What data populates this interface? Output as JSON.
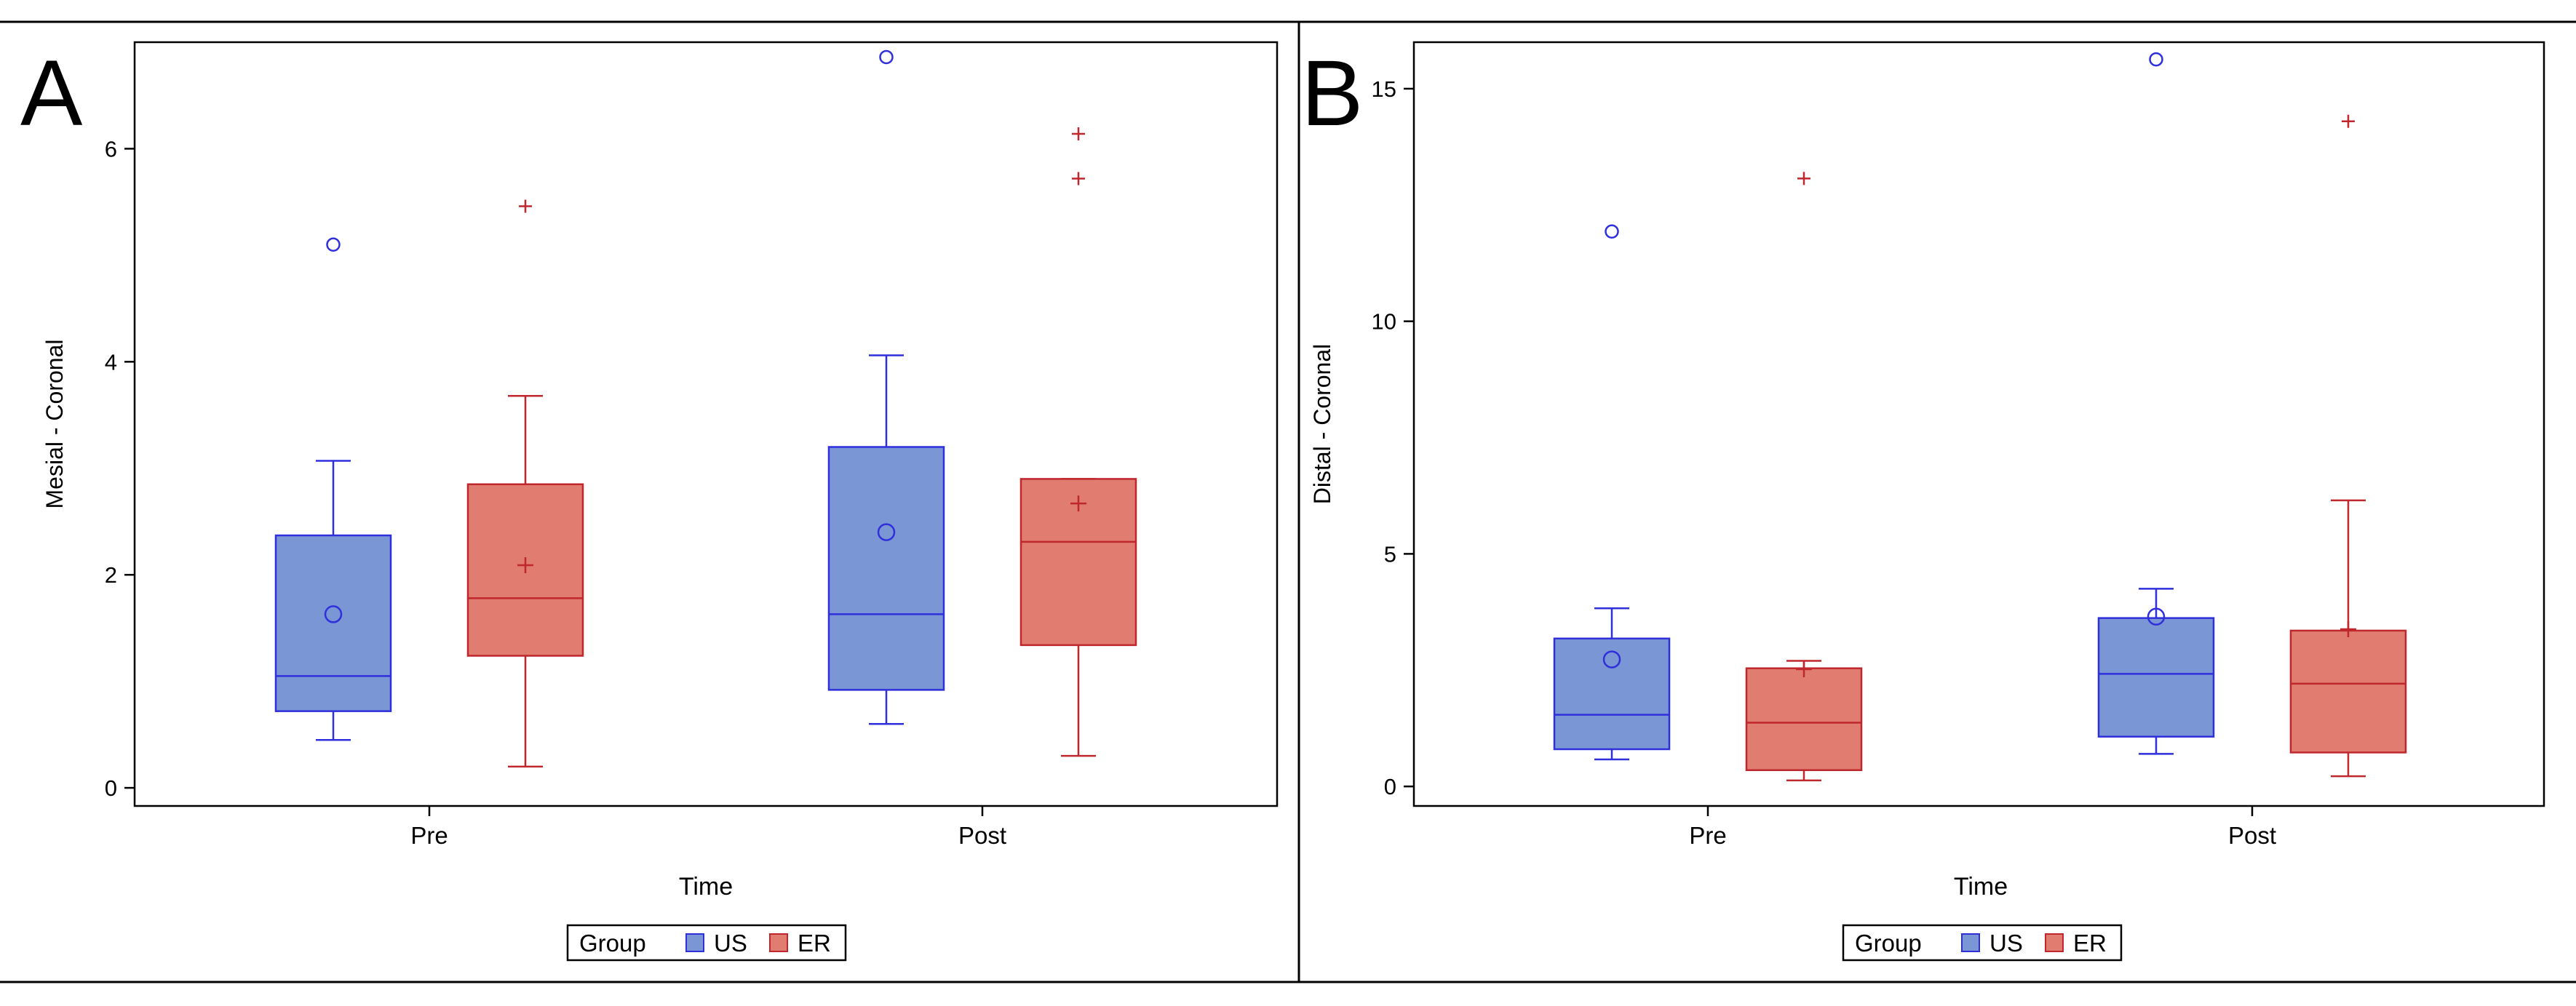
{
  "colors": {
    "us_fill": "#7b96d4",
    "us_stroke": "#2f2fdc",
    "er_fill": "#e07d70",
    "er_stroke": "#c0272d",
    "axis": "#000000"
  },
  "chart_data": [
    {
      "type": "box",
      "panel_label": "A",
      "xlabel": "Time",
      "ylabel": "Mesial - Coronal",
      "categories": [
        "Pre",
        "Post"
      ],
      "yticks": [
        0,
        2,
        4,
        6
      ],
      "ylim": [
        -0.17,
        7.0
      ],
      "legend": {
        "title": "Group",
        "items": [
          "US",
          "ER"
        ],
        "position": "bottom-center"
      },
      "series": [
        {
          "name": "US",
          "boxes": [
            {
              "category": "Pre",
              "whisker_low": 0.45,
              "q1": 0.72,
              "median": 1.05,
              "q3": 2.37,
              "whisker_high": 3.07,
              "mean": 1.63,
              "outliers": [
                5.1
              ]
            },
            {
              "category": "Post",
              "whisker_low": 0.6,
              "q1": 0.92,
              "median": 1.63,
              "q3": 3.2,
              "whisker_high": 4.06,
              "mean": 2.4,
              "outliers": [
                6.86
              ]
            }
          ]
        },
        {
          "name": "ER",
          "boxes": [
            {
              "category": "Pre",
              "whisker_low": 0.2,
              "q1": 1.24,
              "median": 1.78,
              "q3": 2.85,
              "whisker_high": 3.68,
              "mean": 2.09,
              "outliers": [
                5.46
              ]
            },
            {
              "category": "Post",
              "whisker_low": 0.3,
              "q1": 1.34,
              "median": 2.31,
              "q3": 2.9,
              "whisker_high": 2.9,
              "mean": 2.67,
              "outliers": [
                5.72,
                6.14
              ]
            }
          ]
        }
      ]
    },
    {
      "type": "box",
      "panel_label": "B",
      "xlabel": "Time",
      "ylabel": "Distal - Coronal",
      "categories": [
        "Pre",
        "Post"
      ],
      "yticks": [
        0,
        5,
        10,
        15
      ],
      "ylim": [
        -0.42,
        16.0
      ],
      "legend": {
        "title": "Group",
        "items": [
          "US",
          "ER"
        ],
        "position": "bottom-center"
      },
      "series": [
        {
          "name": "US",
          "boxes": [
            {
              "category": "Pre",
              "whisker_low": 0.58,
              "q1": 0.8,
              "median": 1.54,
              "q3": 3.18,
              "whisker_high": 3.83,
              "mean": 2.73,
              "outliers": [
                11.93
              ]
            },
            {
              "category": "Post",
              "whisker_low": 0.7,
              "q1": 1.07,
              "median": 2.42,
              "q3": 3.62,
              "whisker_high": 4.25,
              "mean": 3.65,
              "outliers": [
                15.63
              ]
            }
          ]
        },
        {
          "name": "ER",
          "boxes": [
            {
              "category": "Pre",
              "whisker_low": 0.13,
              "q1": 0.35,
              "median": 1.37,
              "q3": 2.54,
              "whisker_high": 2.7,
              "mean": 2.52,
              "outliers": [
                13.07
              ]
            },
            {
              "category": "Post",
              "whisker_low": 0.22,
              "q1": 0.73,
              "median": 2.21,
              "q3": 3.35,
              "whisker_high": 6.15,
              "mean": 3.38,
              "outliers": [
                14.3
              ]
            }
          ]
        }
      ]
    }
  ]
}
